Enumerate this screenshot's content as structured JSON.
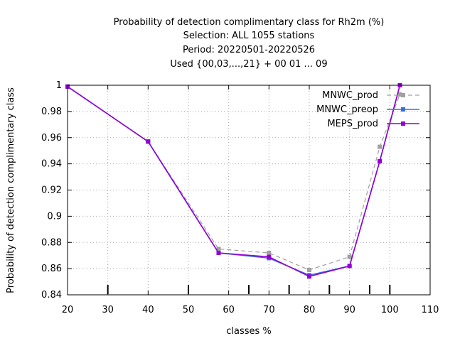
{
  "chart_data": {
    "type": "line",
    "title_lines": [
      "Probability of detection complimentary class  for Rh2m (%)",
      "Selection: ALL    1055 stations",
      "Period: 20220501-20220526",
      "Used {00,03,...,21} + 00 01 ... 09"
    ],
    "xlabel": "classes %",
    "ylabel": "Probability of detection complimentary class",
    "xlim": [
      20,
      110
    ],
    "ylim": [
      0.84,
      1.0
    ],
    "xticks": [
      20,
      30,
      40,
      50,
      60,
      70,
      80,
      90,
      100,
      110
    ],
    "yticks": [
      0.84,
      0.86,
      0.88,
      0.9,
      0.92,
      0.94,
      0.96,
      0.98,
      1.0
    ],
    "ytick_labels": [
      "0.84",
      "0.86",
      "0.88",
      "0.9",
      "0.92",
      "0.94",
      "0.96",
      "0.98",
      "1"
    ],
    "grid": true,
    "legend_position": "top-right",
    "minor_marks_x": [
      30,
      50,
      65,
      75,
      85,
      95,
      100
    ],
    "series": [
      {
        "name": "MNWC_prod",
        "color": "#a0a0a0",
        "dashed": true,
        "x": [
          20,
          40,
          57.5,
          70,
          80,
          90,
          97.5,
          102.5
        ],
        "y": [
          0.999,
          0.957,
          0.875,
          0.872,
          0.859,
          0.869,
          0.953,
          0.993
        ]
      },
      {
        "name": "MNWC_preop",
        "color": "#3a6fd8",
        "dashed": false,
        "x": [
          20,
          40,
          57.5,
          70,
          80,
          90,
          97.5,
          102.5
        ],
        "y": [
          0.999,
          0.957,
          0.872,
          0.868,
          0.855,
          0.862,
          0.942,
          1.0
        ]
      },
      {
        "name": "MEPS_prod",
        "color": "#9400d3",
        "dashed": false,
        "x": [
          20,
          40,
          57.5,
          70,
          80,
          90,
          97.5,
          102.5
        ],
        "y": [
          0.999,
          0.957,
          0.872,
          0.869,
          0.854,
          0.862,
          0.942,
          1.0
        ]
      }
    ]
  }
}
